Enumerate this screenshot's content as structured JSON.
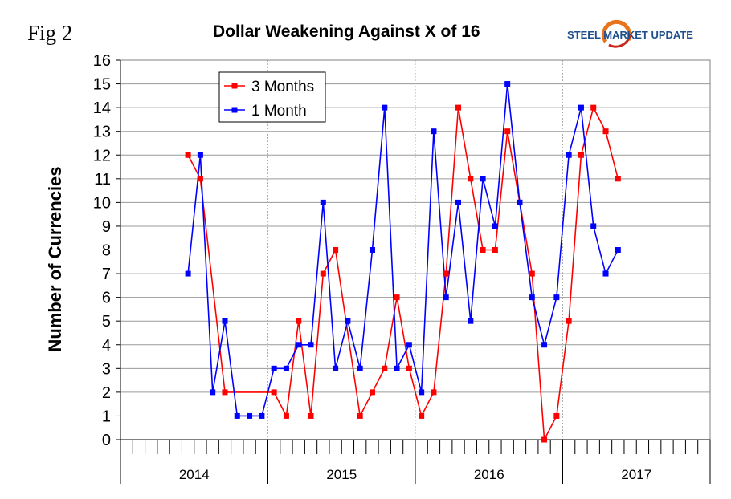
{
  "figure_label": "Fig 2",
  "logo": {
    "text": "STEEL MARKET UPDATE",
    "icon": "swoosh-logo",
    "accent_color": "#e8731c",
    "text_color": "#1f4e8c"
  },
  "chart_data": {
    "type": "line",
    "title": "Dollar Weakening Against X of 16",
    "xlabel": "",
    "ylabel": "Number of Currencies",
    "ylim": [
      0,
      16
    ],
    "yticks": [
      0,
      1,
      2,
      3,
      4,
      5,
      6,
      7,
      8,
      9,
      10,
      11,
      12,
      13,
      14,
      15,
      16
    ],
    "grid": true,
    "legend_position": "top-left",
    "months_total": 48,
    "year_groups": [
      {
        "label": "2014",
        "months": 12
      },
      {
        "label": "2015",
        "months": 12
      },
      {
        "label": "2016",
        "months": 12
      },
      {
        "label": "2017",
        "months": 12
      }
    ],
    "series": [
      {
        "name": "3 Months",
        "color": "#ff0000",
        "start_month_index": 5,
        "values": [
          12,
          11,
          null,
          2,
          null,
          null,
          null,
          2,
          1,
          5,
          1,
          7,
          8,
          null,
          1,
          2,
          3,
          6,
          3,
          1,
          2,
          7,
          14,
          11,
          8,
          8,
          13,
          10,
          7,
          0,
          1,
          5,
          12,
          14,
          13,
          11
        ]
      },
      {
        "name": "1 Month",
        "color": "#0000ff",
        "start_month_index": 5,
        "values": [
          7,
          12,
          2,
          5,
          1,
          1,
          1,
          3,
          3,
          4,
          4,
          10,
          3,
          5,
          3,
          8,
          14,
          3,
          4,
          2,
          13,
          6,
          10,
          5,
          11,
          9,
          15,
          10,
          6,
          4,
          6,
          12,
          14,
          9,
          7,
          8
        ]
      }
    ]
  }
}
